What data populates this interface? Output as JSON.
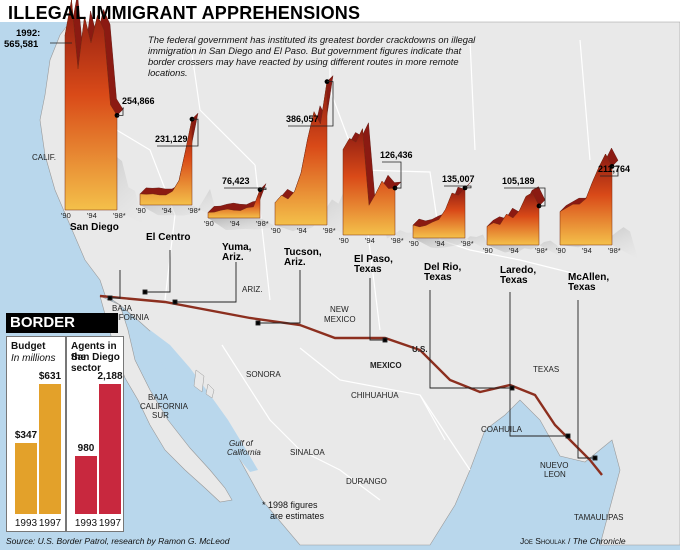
{
  "title": "ILLEGAL IMMIGRANT APPREHENSIONS",
  "intro": "The federal government has instituted its greatest border crackdowns on illegal immigration in San Diego and El Paso. But government figures indicate that border crossers may have reacted by using different routes in more remote locations.",
  "peak_note_line1": "1992:",
  "peak_note_line2": "565,581",
  "note_estimates_line1": "* 1998 figures",
  "note_estimates_line2": "are estimates",
  "source": "Source: U.S. Border Patrol, research by Ramon G. McLeod",
  "credit": {
    "name": "Joe Shoulak",
    "publication": "The Chronicle"
  },
  "map_labels": [
    {
      "key": "calif",
      "text": "CALIF."
    },
    {
      "key": "ariz",
      "text": "ARIZ."
    },
    {
      "key": "new_mexico_1",
      "text": "NEW"
    },
    {
      "key": "new_mexico_2",
      "text": "MEXICO"
    },
    {
      "key": "texas",
      "text": "TEXAS"
    },
    {
      "key": "us",
      "text": "U.S."
    },
    {
      "key": "mexico",
      "text": "MEXICO"
    },
    {
      "key": "baja_california_1",
      "text": "BAJA"
    },
    {
      "key": "baja_california_2",
      "text": "CALIFORNIA"
    },
    {
      "key": "baja_sur_1",
      "text": "BAJA"
    },
    {
      "key": "baja_sur_2",
      "text": "CALIFORNIA"
    },
    {
      "key": "baja_sur_3",
      "text": "SUR"
    },
    {
      "key": "sonora",
      "text": "SONORA"
    },
    {
      "key": "chihuahua",
      "text": "CHIHUAHUA"
    },
    {
      "key": "coahuila",
      "text": "COAHUILA"
    },
    {
      "key": "sinaloa",
      "text": "SINALOA"
    },
    {
      "key": "durango",
      "text": "DURANGO"
    },
    {
      "key": "nuevo_leon_1",
      "text": "NUEVO"
    },
    {
      "key": "nuevo_leon_2",
      "text": "LEON"
    },
    {
      "key": "tamaulipas",
      "text": "TAMAULIPAS"
    },
    {
      "key": "gulf_1",
      "text": "Gulf of"
    },
    {
      "key": "gulf_2",
      "text": "California"
    }
  ],
  "colors": {
    "ocean": "#b9d7ec",
    "land": "#e9e9e9",
    "border": "#8c2f1f",
    "area_top": "#8b1a12",
    "area_mid": "#d94a18",
    "area_bottom": "#f4c04a",
    "budget_bar": "#e3a12a",
    "agents_bar": "#c8283e"
  },
  "chart_data": {
    "type": "area",
    "title": "ILLEGAL IMMIGRANT APPREHENSIONS",
    "x_tick_labels": [
      "'90",
      "'94",
      "'98*"
    ],
    "series": [
      {
        "name": "San Diego",
        "values": [
          470000,
          565581,
          380000,
          520000,
          450000,
          524000,
          484000,
          283000,
          254866
        ]
      },
      {
        "name": "El Centro",
        "values": [
          30000,
          29000,
          30000,
          27000,
          27000,
          37000,
          66000,
          146000,
          231129
        ]
      },
      {
        "name": "Yuma, Ariz.",
        "values": [
          15000,
          16000,
          21000,
          24000,
          21000,
          20000,
          28000,
          30000,
          76423
        ]
      },
      {
        "name": "Tucson, Ariz.",
        "values": [
          60000,
          80000,
          70000,
          90000,
          140000,
          230000,
          305000,
          272000,
          386057
        ]
      },
      {
        "name": "El Paso, Texas",
        "values": [
          230000,
          260000,
          250000,
          286000,
          80000,
          110000,
          145000,
          125000,
          126436
        ]
      },
      {
        "name": "Del Rio, Texas",
        "values": [
          35000,
          30000,
          34000,
          43000,
          50000,
          77000,
          121000,
          115000,
          135007
        ]
      },
      {
        "name": "Laredo, Texas",
        "values": [
          50000,
          60000,
          55000,
          83000,
          73000,
          93000,
          131000,
          141000,
          105189
        ]
      },
      {
        "name": "McAllen, Texas",
        "values": [
          90000,
          100000,
          110000,
          110000,
          125000,
          170000,
          210000,
          245000,
          211764
        ]
      }
    ],
    "value_labels": [
      "254,866",
      "231,129",
      "76,423",
      "386,057",
      "126,436",
      "135,007",
      "105,189",
      "211,764"
    ]
  },
  "border_patrol": {
    "title": "BORDER PATROL",
    "budget": {
      "heading": "Budget",
      "subheading": "In millions",
      "categories": [
        "1993",
        "1997"
      ],
      "values": [
        347,
        631
      ],
      "labels": [
        "$347",
        "$631"
      ]
    },
    "agents": {
      "heading_line1": "Agents in the",
      "heading_line2": "San Diego sector",
      "categories": [
        "1993",
        "1997"
      ],
      "values": [
        980,
        2188
      ],
      "labels": [
        "980",
        "2,188"
      ]
    }
  }
}
